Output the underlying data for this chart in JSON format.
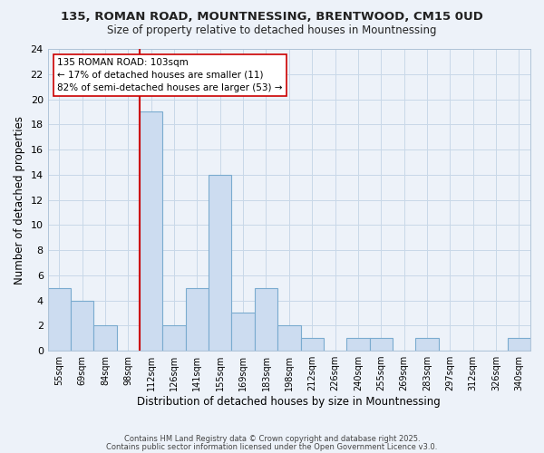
{
  "title": "135, ROMAN ROAD, MOUNTNESSING, BRENTWOOD, CM15 0UD",
  "subtitle": "Size of property relative to detached houses in Mountnessing",
  "xlabel": "Distribution of detached houses by size in Mountnessing",
  "ylabel": "Number of detached properties",
  "categories": [
    "55sqm",
    "69sqm",
    "84sqm",
    "98sqm",
    "112sqm",
    "126sqm",
    "141sqm",
    "155sqm",
    "169sqm",
    "183sqm",
    "198sqm",
    "212sqm",
    "226sqm",
    "240sqm",
    "255sqm",
    "269sqm",
    "283sqm",
    "297sqm",
    "312sqm",
    "326sqm",
    "340sqm"
  ],
  "values": [
    5,
    4,
    2,
    0,
    19,
    2,
    5,
    14,
    3,
    5,
    2,
    1,
    0,
    1,
    1,
    0,
    1,
    0,
    0,
    0,
    1
  ],
  "bar_color": "#ccdcf0",
  "bar_edge_color": "#7aabcf",
  "grid_color": "#c8d8e8",
  "background_color": "#edf2f9",
  "vline_x_index": 4,
  "vline_color": "#cc0000",
  "annotation_text": "135 ROMAN ROAD: 103sqm\n← 17% of detached houses are smaller (11)\n82% of semi-detached houses are larger (53) →",
  "annotation_box_facecolor": "white",
  "annotation_box_edgecolor": "#cc0000",
  "ylim": [
    0,
    24
  ],
  "yticks": [
    0,
    2,
    4,
    6,
    8,
    10,
    12,
    14,
    16,
    18,
    20,
    22,
    24
  ],
  "footer_line1": "Contains HM Land Registry data © Crown copyright and database right 2025.",
  "footer_line2": "Contains public sector information licensed under the Open Government Licence v3.0."
}
